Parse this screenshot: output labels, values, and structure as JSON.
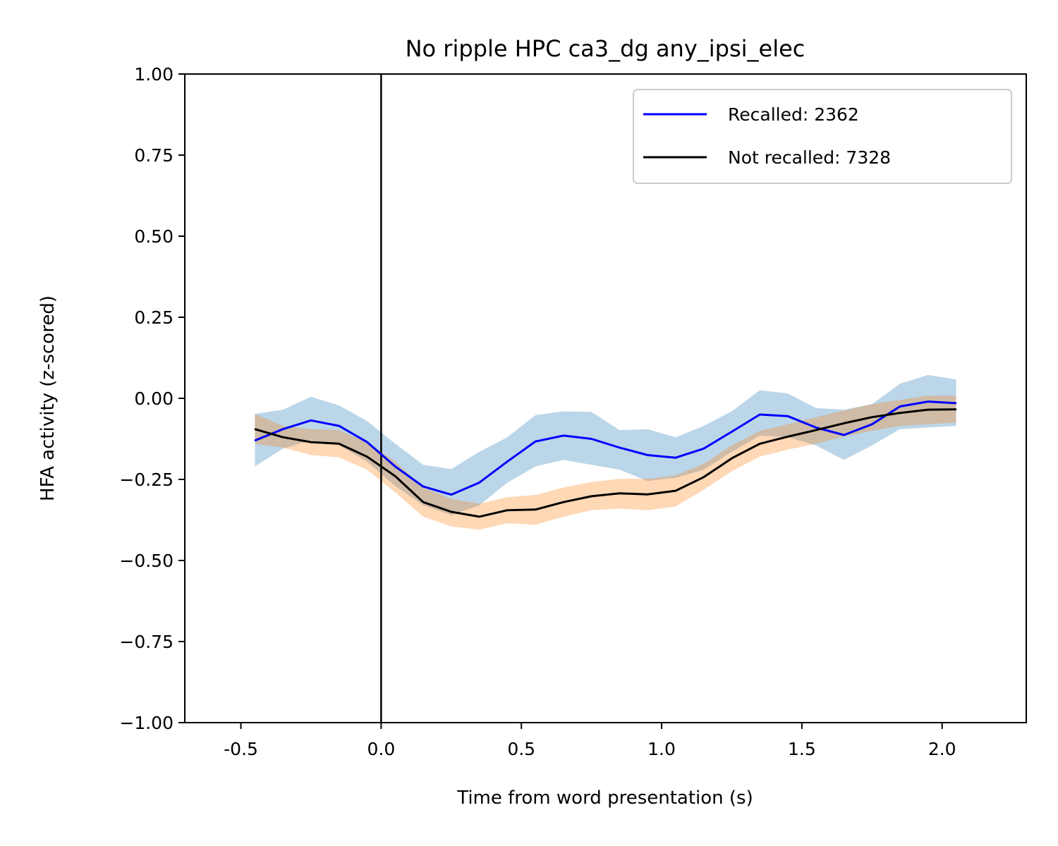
{
  "chart_data": {
    "type": "line",
    "title": "No ripple HPC ca3_dg any_ipsi_elec",
    "xlabel": "Time from word presentation (s)",
    "ylabel": "HFA activity (z-scored)",
    "xlim": [
      -0.7,
      2.3
    ],
    "ylim": [
      -1.0,
      1.0
    ],
    "xticks": [
      -0.5,
      0.0,
      0.5,
      1.0,
      1.5,
      2.0
    ],
    "xtick_labels": [
      "-0.5",
      "0.0",
      "0.5",
      "1.0",
      "1.5",
      "2.0"
    ],
    "yticks": [
      -1.0,
      -0.75,
      -0.5,
      -0.25,
      0.0,
      0.25,
      0.5,
      0.75,
      1.0
    ],
    "ytick_labels": [
      "−1.00",
      "−0.75",
      "−0.50",
      "−0.25",
      "0.00",
      "0.25",
      "0.50",
      "0.75",
      "1.00"
    ],
    "vline_x": 0.0,
    "grid": false,
    "legend_position": "top-right",
    "x": [
      -0.45,
      -0.35,
      -0.25,
      -0.15,
      -0.05,
      0.05,
      0.15,
      0.25,
      0.35,
      0.45,
      0.55,
      0.65,
      0.75,
      0.85,
      0.95,
      1.05,
      1.15,
      1.25,
      1.35,
      1.45,
      1.55,
      1.65,
      1.75,
      1.85,
      1.95,
      2.05
    ],
    "series": [
      {
        "name": "Recalled: 2362",
        "color": "#0000ff",
        "band_color": "#1f77b4",
        "values": [
          -0.13,
          -0.095,
          -0.068,
          -0.085,
          -0.135,
          -0.21,
          -0.272,
          -0.297,
          -0.26,
          -0.195,
          -0.133,
          -0.115,
          -0.125,
          -0.152,
          -0.175,
          -0.183,
          -0.155,
          -0.103,
          -0.05,
          -0.055,
          -0.09,
          -0.113,
          -0.08,
          -0.025,
          -0.01,
          -0.015
        ],
        "lower": [
          -0.21,
          -0.155,
          -0.13,
          -0.145,
          -0.195,
          -0.27,
          -0.33,
          -0.36,
          -0.33,
          -0.26,
          -0.21,
          -0.19,
          -0.205,
          -0.22,
          -0.255,
          -0.245,
          -0.22,
          -0.165,
          -0.115,
          -0.12,
          -0.145,
          -0.19,
          -0.145,
          -0.095,
          -0.09,
          -0.085
        ],
        "upper": [
          -0.048,
          -0.035,
          0.005,
          -0.022,
          -0.07,
          -0.14,
          -0.205,
          -0.218,
          -0.165,
          -0.12,
          -0.052,
          -0.04,
          -0.042,
          -0.098,
          -0.095,
          -0.12,
          -0.085,
          -0.04,
          0.025,
          0.015,
          -0.03,
          -0.035,
          -0.018,
          0.045,
          0.072,
          0.058
        ]
      },
      {
        "name": "Not recalled: 7328",
        "color": "#000000",
        "band_color": "#ff7f0e",
        "values": [
          -0.095,
          -0.12,
          -0.135,
          -0.14,
          -0.18,
          -0.24,
          -0.32,
          -0.35,
          -0.365,
          -0.345,
          -0.343,
          -0.32,
          -0.302,
          -0.293,
          -0.296,
          -0.285,
          -0.243,
          -0.185,
          -0.14,
          -0.118,
          -0.098,
          -0.077,
          -0.058,
          -0.045,
          -0.035,
          -0.034
        ],
        "lower": [
          -0.14,
          -0.152,
          -0.175,
          -0.182,
          -0.22,
          -0.29,
          -0.365,
          -0.395,
          -0.405,
          -0.385,
          -0.39,
          -0.365,
          -0.345,
          -0.34,
          -0.345,
          -0.333,
          -0.282,
          -0.225,
          -0.18,
          -0.158,
          -0.14,
          -0.118,
          -0.1,
          -0.085,
          -0.08,
          -0.075
        ],
        "upper": [
          -0.048,
          -0.085,
          -0.095,
          -0.098,
          -0.135,
          -0.195,
          -0.275,
          -0.31,
          -0.325,
          -0.305,
          -0.298,
          -0.275,
          -0.258,
          -0.248,
          -0.248,
          -0.238,
          -0.202,
          -0.145,
          -0.1,
          -0.08,
          -0.058,
          -0.038,
          -0.018,
          -0.005,
          0.008,
          0.008
        ]
      }
    ]
  }
}
